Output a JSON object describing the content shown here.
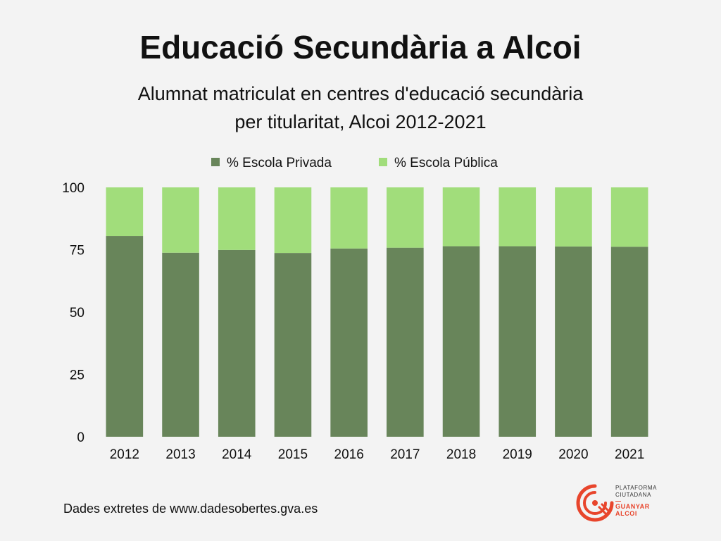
{
  "header": {
    "title": "Educació Secundària a Alcoi",
    "subtitle_line1": "Alumnat matriculat en centres d'educació secundària",
    "subtitle_line2": "per titularitat, Alcoi 2012-2021"
  },
  "footer": {
    "source": "Dades extretes de www.dadesobertes.gva.es"
  },
  "logo": {
    "line1": "PLATAFORMA",
    "line2": "CIUTADANA",
    "line3": "GUANYAR",
    "line4": "ALCOI"
  },
  "colors": {
    "privada": "#68855a",
    "publica": "#a1dd7b",
    "accent": "#e8452c"
  },
  "chart_data": {
    "type": "bar",
    "stacked": true,
    "title": "",
    "xlabel": "",
    "ylabel": "",
    "ylim": [
      0,
      100
    ],
    "yticks": [
      0,
      25,
      50,
      75,
      100
    ],
    "grid": false,
    "legend_position": "top",
    "categories": [
      "2012",
      "2013",
      "2014",
      "2015",
      "2016",
      "2017",
      "2018",
      "2019",
      "2020",
      "2021"
    ],
    "series": [
      {
        "name": "% Escola Privada",
        "color": "#68855a",
        "values": [
          80.5,
          73.8,
          74.9,
          73.7,
          75.5,
          75.8,
          76.4,
          76.4,
          76.3,
          76.2
        ]
      },
      {
        "name": "% Escola Pública",
        "color": "#a1dd7b",
        "values": [
          19.5,
          26.2,
          25.1,
          26.3,
          24.5,
          24.2,
          23.6,
          23.6,
          23.7,
          23.8
        ]
      }
    ]
  }
}
